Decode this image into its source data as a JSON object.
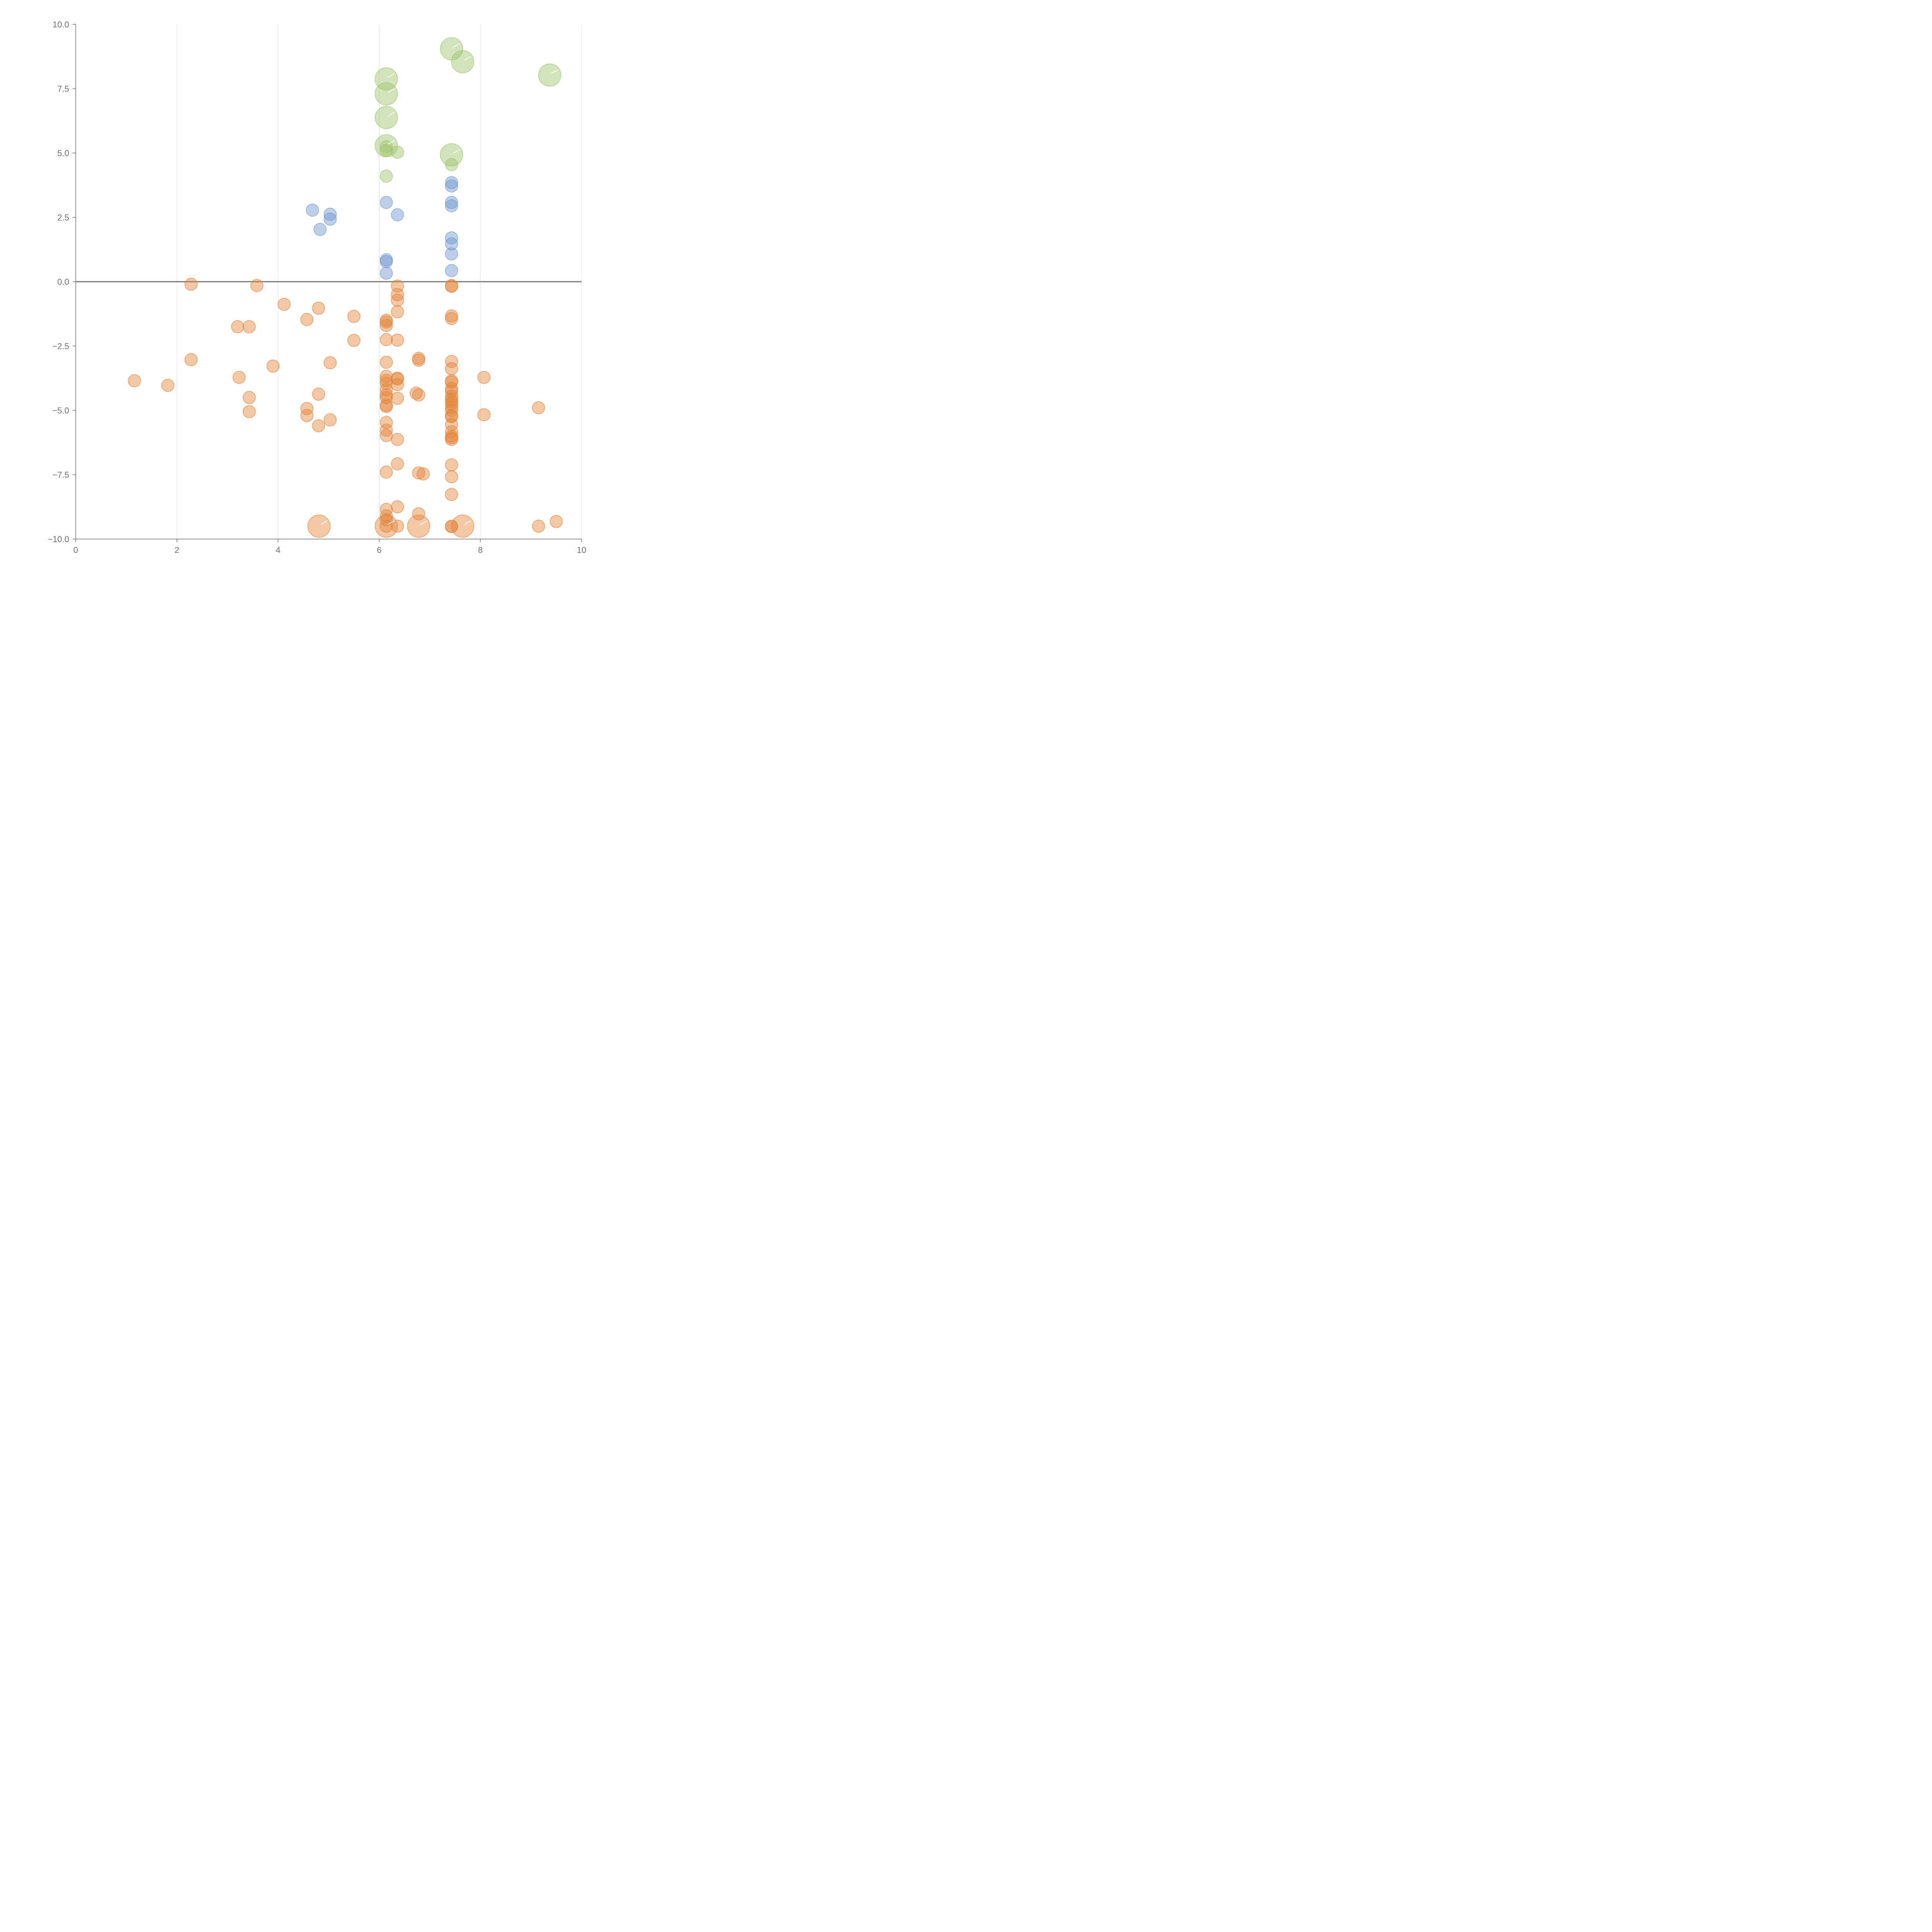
{
  "chart_data": {
    "type": "scatter",
    "title": "",
    "xlabel": "",
    "ylabel": "",
    "xlim": [
      0,
      10
    ],
    "ylim": [
      -10,
      10
    ],
    "x_ticks": [
      "0",
      "2",
      "4",
      "6",
      "8",
      "10"
    ],
    "y_ticks": [
      "10.0",
      "7.5",
      "5.0",
      "2.5",
      "0.0",
      "−2.5",
      "−5.0",
      "−7.5",
      "−10.0"
    ],
    "grid": "vertical",
    "zero_line": true,
    "legend": "none",
    "colors": {
      "green": "#9dc46a",
      "blue": "#6f97cf",
      "orange": "#e2843a",
      "axis": "#707070",
      "grid": "#dcdcdc"
    },
    "series": [
      {
        "color": "green",
        "points": [
          {
            "x": 7.43,
            "y": 9.05,
            "size": "large"
          },
          {
            "x": 7.65,
            "y": 8.55,
            "size": "large"
          },
          {
            "x": 9.37,
            "y": 8.03,
            "size": "large"
          },
          {
            "x": 6.14,
            "y": 7.88,
            "size": "large"
          },
          {
            "x": 6.14,
            "y": 7.3,
            "size": "large"
          },
          {
            "x": 6.14,
            "y": 6.38,
            "size": "large"
          },
          {
            "x": 6.14,
            "y": 5.28,
            "size": "large"
          },
          {
            "x": 6.14,
            "y": 5.25,
            "size": "small"
          },
          {
            "x": 6.14,
            "y": 5.1,
            "size": "small"
          },
          {
            "x": 6.36,
            "y": 5.03,
            "size": "small"
          },
          {
            "x": 7.43,
            "y": 4.93,
            "size": "large"
          },
          {
            "x": 7.43,
            "y": 4.55,
            "size": "small"
          },
          {
            "x": 6.14,
            "y": 4.1,
            "size": "small"
          }
        ]
      },
      {
        "color": "blue",
        "points": [
          {
            "x": 7.43,
            "y": 3.85
          },
          {
            "x": 7.43,
            "y": 3.72
          },
          {
            "x": 6.14,
            "y": 3.08
          },
          {
            "x": 7.43,
            "y": 3.08
          },
          {
            "x": 7.43,
            "y": 2.95
          },
          {
            "x": 4.68,
            "y": 2.78
          },
          {
            "x": 5.03,
            "y": 2.62
          },
          {
            "x": 5.03,
            "y": 2.43
          },
          {
            "x": 6.36,
            "y": 2.6
          },
          {
            "x": 4.83,
            "y": 2.03
          },
          {
            "x": 7.43,
            "y": 1.7
          },
          {
            "x": 7.43,
            "y": 1.47
          },
          {
            "x": 7.43,
            "y": 1.08
          },
          {
            "x": 6.14,
            "y": 0.85
          },
          {
            "x": 6.14,
            "y": 0.78
          },
          {
            "x": 7.43,
            "y": 0.43
          },
          {
            "x": 6.14,
            "y": 0.33
          }
        ]
      },
      {
        "color": "orange",
        "points": [
          {
            "x": 2.28,
            "y": -0.1
          },
          {
            "x": 3.58,
            "y": -0.15
          },
          {
            "x": 6.36,
            "y": -0.17
          },
          {
            "x": 7.43,
            "y": -0.15
          },
          {
            "x": 7.43,
            "y": -0.18
          },
          {
            "x": 6.36,
            "y": -0.5
          },
          {
            "x": 6.36,
            "y": -0.72
          },
          {
            "x": 4.12,
            "y": -0.88
          },
          {
            "x": 4.8,
            "y": -1.03
          },
          {
            "x": 6.36,
            "y": -1.17
          },
          {
            "x": 5.5,
            "y": -1.35
          },
          {
            "x": 7.43,
            "y": -1.33
          },
          {
            "x": 7.43,
            "y": -1.43
          },
          {
            "x": 4.57,
            "y": -1.47
          },
          {
            "x": 6.14,
            "y": -1.5
          },
          {
            "x": 6.14,
            "y": -1.57
          },
          {
            "x": 6.14,
            "y": -1.7
          },
          {
            "x": 3.2,
            "y": -1.75
          },
          {
            "x": 3.43,
            "y": -1.75
          },
          {
            "x": 6.14,
            "y": -2.25
          },
          {
            "x": 6.36,
            "y": -2.27
          },
          {
            "x": 5.5,
            "y": -2.28
          },
          {
            "x": 2.28,
            "y": -3.03
          },
          {
            "x": 6.78,
            "y": -2.98
          },
          {
            "x": 6.78,
            "y": -3.05
          },
          {
            "x": 7.43,
            "y": -3.1
          },
          {
            "x": 6.14,
            "y": -3.13
          },
          {
            "x": 5.03,
            "y": -3.15
          },
          {
            "x": 3.9,
            "y": -3.28
          },
          {
            "x": 7.43,
            "y": -3.38
          },
          {
            "x": 6.14,
            "y": -3.68
          },
          {
            "x": 3.23,
            "y": -3.72
          },
          {
            "x": 8.07,
            "y": -3.72
          },
          {
            "x": 6.36,
            "y": -3.75
          },
          {
            "x": 6.36,
            "y": -3.78
          },
          {
            "x": 6.14,
            "y": -3.83
          },
          {
            "x": 1.16,
            "y": -3.85
          },
          {
            "x": 7.43,
            "y": -3.85
          },
          {
            "x": 7.43,
            "y": -3.9
          },
          {
            "x": 6.14,
            "y": -3.95
          },
          {
            "x": 1.82,
            "y": -4.03
          },
          {
            "x": 6.36,
            "y": -4.0
          },
          {
            "x": 7.43,
            "y": -4.15
          },
          {
            "x": 6.14,
            "y": -4.2
          },
          {
            "x": 7.43,
            "y": -4.25
          },
          {
            "x": 6.73,
            "y": -4.33
          },
          {
            "x": 4.8,
            "y": -4.37
          },
          {
            "x": 6.78,
            "y": -4.4
          },
          {
            "x": 6.14,
            "y": -4.4
          },
          {
            "x": 6.14,
            "y": -4.5
          },
          {
            "x": 3.43,
            "y": -4.5
          },
          {
            "x": 7.43,
            "y": -4.45
          },
          {
            "x": 7.43,
            "y": -4.55
          },
          {
            "x": 6.36,
            "y": -4.53
          },
          {
            "x": 7.43,
            "y": -4.65
          },
          {
            "x": 7.43,
            "y": -4.75
          },
          {
            "x": 6.14,
            "y": -4.8
          },
          {
            "x": 6.14,
            "y": -4.85
          },
          {
            "x": 7.43,
            "y": -4.88
          },
          {
            "x": 4.57,
            "y": -4.93
          },
          {
            "x": 9.15,
            "y": -4.9
          },
          {
            "x": 7.43,
            "y": -5.0
          },
          {
            "x": 3.43,
            "y": -5.05
          },
          {
            "x": 7.43,
            "y": -5.2
          },
          {
            "x": 7.43,
            "y": -5.25
          },
          {
            "x": 8.07,
            "y": -5.17
          },
          {
            "x": 4.57,
            "y": -5.2
          },
          {
            "x": 5.03,
            "y": -5.37
          },
          {
            "x": 6.14,
            "y": -5.47
          },
          {
            "x": 7.43,
            "y": -5.55
          },
          {
            "x": 4.8,
            "y": -5.6
          },
          {
            "x": 6.14,
            "y": -5.77
          },
          {
            "x": 7.43,
            "y": -5.83
          },
          {
            "x": 6.14,
            "y": -5.98
          },
          {
            "x": 7.43,
            "y": -6.0
          },
          {
            "x": 7.43,
            "y": -6.07
          },
          {
            "x": 6.36,
            "y": -6.13
          },
          {
            "x": 7.43,
            "y": -6.13
          },
          {
            "x": 6.36,
            "y": -7.08
          },
          {
            "x": 7.43,
            "y": -7.12
          },
          {
            "x": 6.14,
            "y": -7.4
          },
          {
            "x": 6.78,
            "y": -7.43
          },
          {
            "x": 6.87,
            "y": -7.47
          },
          {
            "x": 7.43,
            "y": -7.58
          },
          {
            "x": 7.43,
            "y": -8.27
          },
          {
            "x": 6.36,
            "y": -8.75
          },
          {
            "x": 6.14,
            "y": -8.85
          },
          {
            "x": 6.78,
            "y": -9.02
          },
          {
            "x": 6.14,
            "y": -9.1
          },
          {
            "x": 6.14,
            "y": -9.25
          },
          {
            "x": 9.5,
            "y": -9.32
          },
          {
            "x": 4.81,
            "y": -9.5,
            "size": "large"
          },
          {
            "x": 6.14,
            "y": -9.5,
            "size": "large"
          },
          {
            "x": 6.78,
            "y": -9.5,
            "size": "large"
          },
          {
            "x": 7.65,
            "y": -9.5,
            "size": "large"
          },
          {
            "x": 6.14,
            "y": -9.5
          },
          {
            "x": 6.36,
            "y": -9.5
          },
          {
            "x": 7.43,
            "y": -9.5
          },
          {
            "x": 7.43,
            "y": -9.52
          },
          {
            "x": 9.15,
            "y": -9.5
          }
        ]
      }
    ]
  }
}
